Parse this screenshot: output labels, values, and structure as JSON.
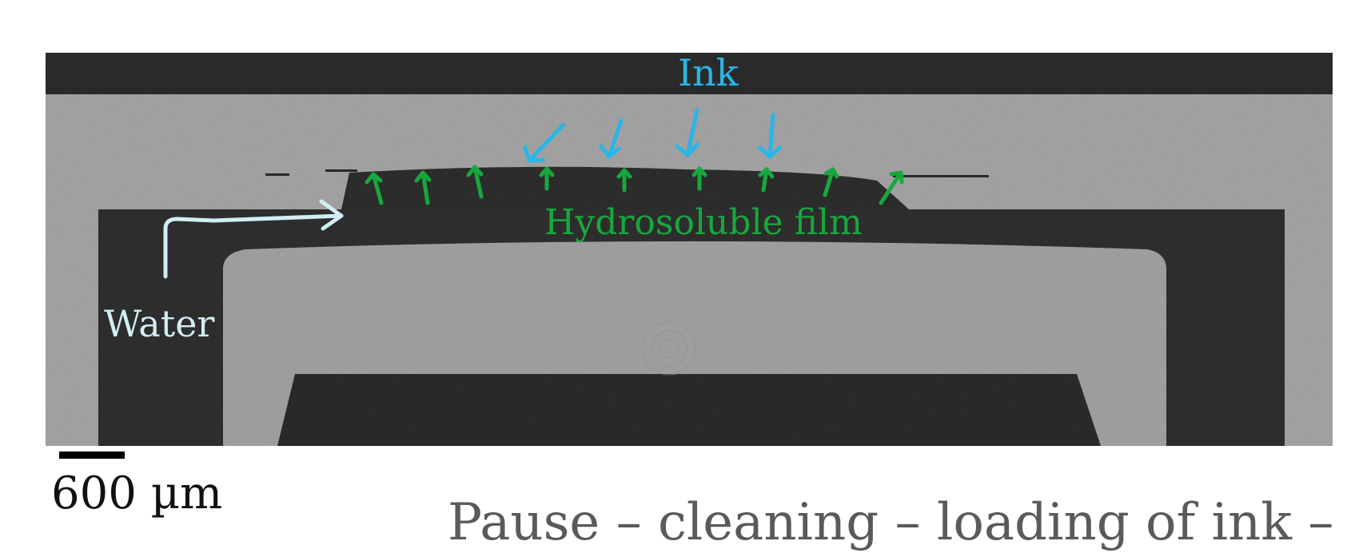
{
  "image": {
    "labels": {
      "ink": "Ink",
      "film": "Hydrosoluble film",
      "water": "Water"
    },
    "scale_bar": {
      "label": "600 µm"
    },
    "caption": "Pause – cleaning – loading of ink –",
    "colors": {
      "ink": "#29b6e8",
      "film": "#17a83d",
      "water": "#d2eef4",
      "dark_region": "#2e2e2e",
      "light_region": "#a8a8a8",
      "background": "#ffffff"
    },
    "icons": [
      "ink-arrow-icon",
      "film-arrow-icon",
      "water-arrow-icon"
    ]
  }
}
